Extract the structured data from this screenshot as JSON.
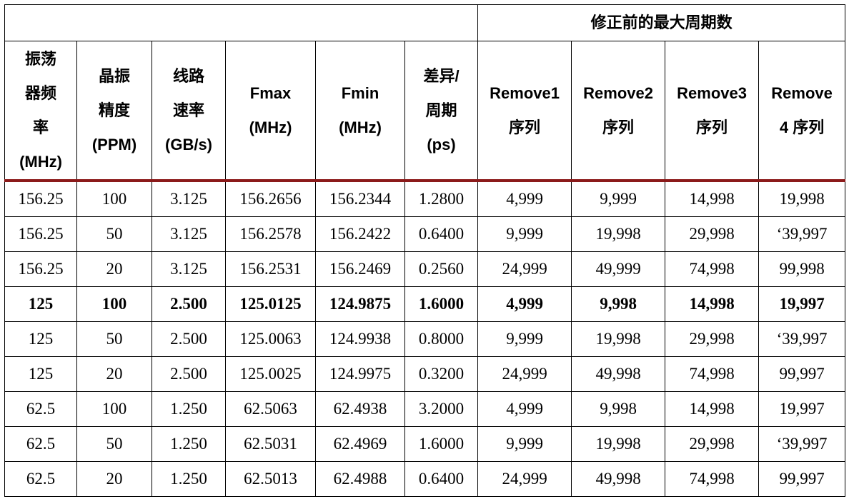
{
  "table": {
    "group_header": "修正前的最大周期数",
    "columns": [
      "振荡\n器频\n率\n(MHz)",
      "晶振\n精度\n(PPM)",
      "线路\n速率\n(GB/s)",
      "Fmax\n(MHz)",
      "Fmin\n(MHz)",
      "差异/\n周期\n(ps)",
      "Remove1\n序列",
      "Remove2\n序列",
      "Remove3\n序列",
      "Remove\n4 序列"
    ],
    "rows": [
      {
        "bold": false,
        "cells": [
          "156.25",
          "100",
          "3.125",
          "156.2656",
          "156.2344",
          "1.2800",
          "4,999",
          "9,999",
          "14,998",
          "19,998"
        ]
      },
      {
        "bold": false,
        "cells": [
          "156.25",
          "50",
          "3.125",
          "156.2578",
          "156.2422",
          "0.6400",
          "9,999",
          "19,998",
          "29,998",
          "‘39,997"
        ]
      },
      {
        "bold": false,
        "cells": [
          "156.25",
          "20",
          "3.125",
          "156.2531",
          "156.2469",
          "0.2560",
          "24,999",
          "49,999",
          "74,998",
          "99,998"
        ]
      },
      {
        "bold": true,
        "cells": [
          "125",
          "100",
          "2.500",
          "125.0125",
          "124.9875",
          "1.6000",
          "4,999",
          "9,998",
          "14,998",
          "19,997"
        ]
      },
      {
        "bold": false,
        "cells": [
          "125",
          "50",
          "2.500",
          "125.0063",
          "124.9938",
          "0.8000",
          "9,999",
          "19,998",
          "29,998",
          "‘39,997"
        ]
      },
      {
        "bold": false,
        "cells": [
          "125",
          "20",
          "2.500",
          "125.0025",
          "124.9975",
          "0.3200",
          "24,999",
          "49,998",
          "74,998",
          "99,997"
        ]
      },
      {
        "bold": false,
        "cells": [
          "62.5",
          "100",
          "1.250",
          "62.5063",
          "62.4938",
          "3.2000",
          "4,999",
          "9,998",
          "14,998",
          "19,997"
        ]
      },
      {
        "bold": false,
        "cells": [
          "62.5",
          "50",
          "1.250",
          "62.5031",
          "62.4969",
          "1.6000",
          "9,999",
          "19,998",
          "29,998",
          "‘39,997"
        ]
      },
      {
        "bold": false,
        "cells": [
          "62.5",
          "20",
          "1.250",
          "62.5013",
          "62.4988",
          "0.6400",
          "24,999",
          "49,998",
          "74,998",
          "99,997"
        ]
      }
    ]
  }
}
